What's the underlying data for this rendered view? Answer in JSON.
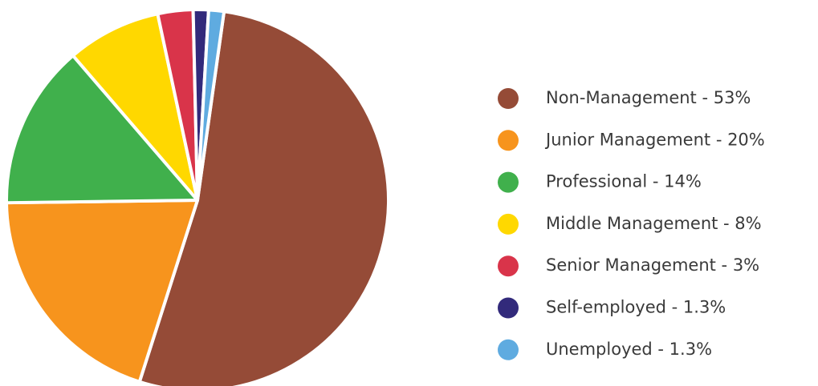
{
  "chart_data": {
    "type": "pie",
    "categories": [
      "Non-Management - 53%",
      "Junior Management - 20%",
      "Professional - 14%",
      "Middle Management - 8%",
      "Senior Management - 3%",
      "Self-employed - 1.3%",
      "Unemployed - 1.3%"
    ],
    "values": [
      53,
      20,
      14,
      8,
      3,
      1.3,
      1.3
    ],
    "colors": [
      "#954b37",
      "#f7941d",
      "#40b04c",
      "#ffd800",
      "#d9344a",
      "#322a7b",
      "#5fabe0"
    ],
    "legend": "right"
  }
}
